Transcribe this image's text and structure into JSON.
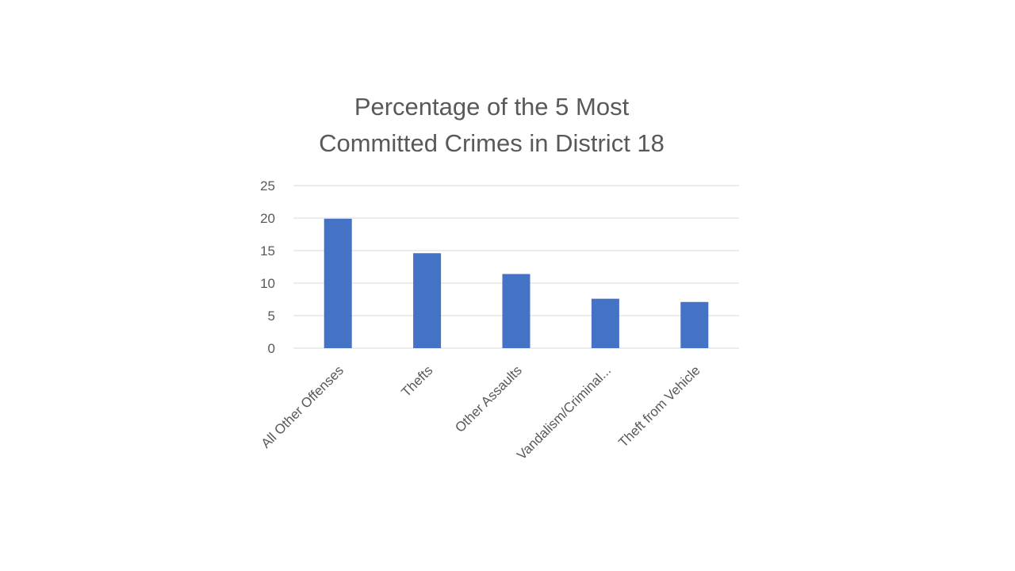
{
  "chart_data": {
    "type": "bar",
    "title_line1": "Percentage of the 5 Most",
    "title_line2": "Committed Crimes in District 18",
    "categories": [
      "All Other Offenses",
      "Thefts",
      "Other Assaults",
      "Vandalism/Criminal...",
      "Theft from Vehicle"
    ],
    "values": [
      19.9,
      14.6,
      11.4,
      7.6,
      7.1
    ],
    "yticks": [
      "0",
      "5",
      "10",
      "15",
      "20",
      "25"
    ],
    "ylim": [
      0,
      25
    ],
    "grid": true,
    "bar_color": "#4472C4",
    "grid_color": "#D9D9D9",
    "text_color": "#595959"
  }
}
